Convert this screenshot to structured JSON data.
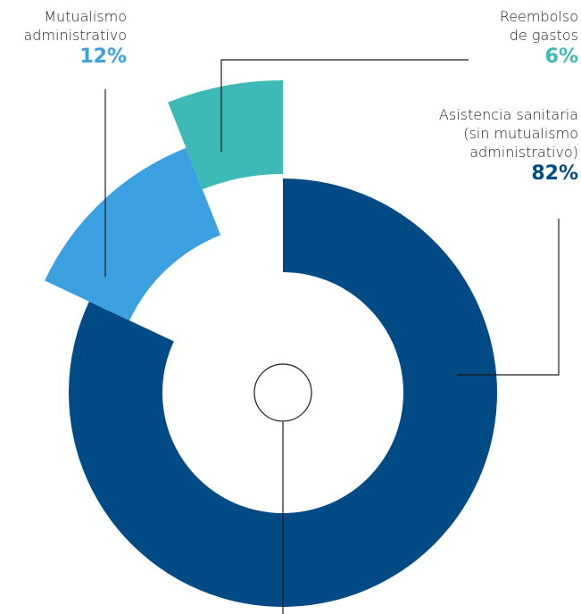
{
  "chart_data": {
    "type": "pie",
    "categories": [
      "Asistencia sanitaria (sin mutualismo administrativo)",
      "Mutualismo administrativo",
      "Reembolso de gastos"
    ],
    "values": [
      82,
      12,
      6
    ],
    "value_labels": [
      "82%",
      "12%",
      "6%"
    ],
    "colors": [
      "#004a85",
      "#3aa0e0",
      "#3dbab8"
    ]
  }
}
